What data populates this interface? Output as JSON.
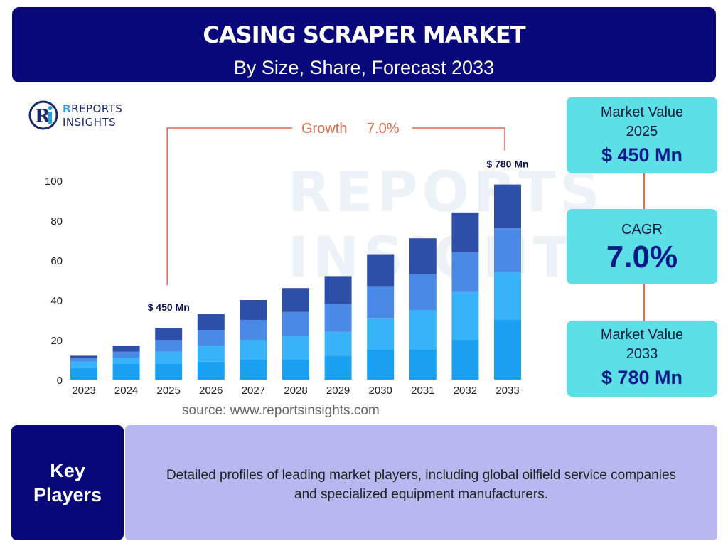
{
  "header": {
    "title": "CASING SCRAPER MARKET",
    "subtitle": "By Size, Share, Forecast 2033"
  },
  "logo": {
    "line1": "REPORTS",
    "line2": "INSIGHTS",
    "icon": "ri-logo-icon"
  },
  "watermark": {
    "line1": "REPORTS",
    "line2": "INSIGHTS"
  },
  "chart_data": {
    "type": "bar",
    "stacked": true,
    "categories": [
      "2023",
      "2024",
      "2025",
      "2026",
      "2027",
      "2028",
      "2029",
      "2030",
      "2031",
      "2032",
      "2033"
    ],
    "series": [
      {
        "values": [
          6,
          8,
          8,
          9,
          10,
          10,
          12,
          15,
          15,
          20,
          30
        ],
        "color": "#1aa0f0"
      },
      {
        "values": [
          3,
          3,
          6,
          8,
          10,
          12,
          12,
          16,
          20,
          24,
          24
        ],
        "color": "#38b2f8"
      },
      {
        "values": [
          2,
          3,
          6,
          8,
          10,
          12,
          14,
          16,
          18,
          20,
          22
        ],
        "color": "#4a8ae6"
      },
      {
        "values": [
          1,
          3,
          6,
          8,
          10,
          12,
          14,
          16,
          18,
          20,
          22
        ],
        "color": "#2e4fa8"
      }
    ],
    "ylim": [
      0,
      100
    ],
    "yticks": [
      0,
      20,
      40,
      60,
      80,
      100
    ],
    "grid": false,
    "annotations": [
      {
        "category": "2025",
        "label": "$ 450 Mn"
      },
      {
        "category": "2033",
        "label": "$ 780 Mn"
      }
    ],
    "growth": {
      "label": "Growth",
      "value": "7.0%",
      "from": "2025",
      "to": "2033",
      "color": "#e06a4a"
    }
  },
  "source": "source: www.reportsinsights.com",
  "cards": [
    {
      "label_line1": "Market Value",
      "label_line2": "2025",
      "value": "$ 450 Mn"
    },
    {
      "label": "CAGR",
      "value": "7.0%"
    },
    {
      "label_line1": "Market Value",
      "label_line2": "2033",
      "value": "$ 780 Mn"
    }
  ],
  "key_players": {
    "label_line1": "Key",
    "label_line2": "Players",
    "description_line1": "Detailed profiles of leading market players, including global oilfield service companies",
    "description_line2": "and specialized equipment manufacturers."
  }
}
